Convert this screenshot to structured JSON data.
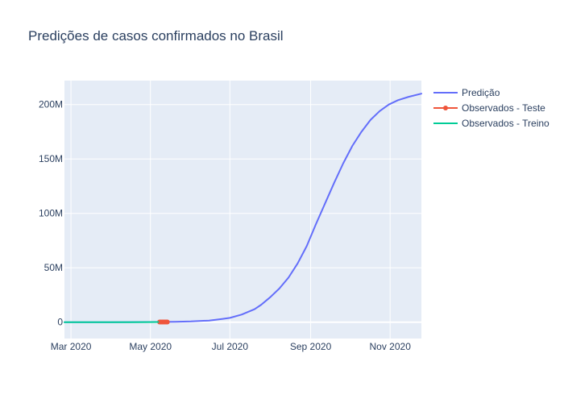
{
  "chart_data": {
    "type": "line",
    "title": "Predições de casos confirmados no Brasil",
    "xlabel": "",
    "ylabel": "",
    "x_axis": {
      "type": "date",
      "range": [
        "2020-02-25",
        "2020-11-25"
      ],
      "ticks": [
        {
          "date": "2020-03-01",
          "label": "Mar 2020"
        },
        {
          "date": "2020-05-01",
          "label": "May 2020"
        },
        {
          "date": "2020-07-01",
          "label": "Jul 2020"
        },
        {
          "date": "2020-09-01",
          "label": "Sep 2020"
        },
        {
          "date": "2020-11-01",
          "label": "Nov 2020"
        }
      ]
    },
    "y_axis": {
      "range": [
        -15000000,
        222000000
      ],
      "ticks": [
        {
          "value": 0,
          "label": "0"
        },
        {
          "value": 50000000,
          "label": "50M"
        },
        {
          "value": 100000000,
          "label": "100M"
        },
        {
          "value": 150000000,
          "label": "150M"
        },
        {
          "value": 200000000,
          "label": "200M"
        }
      ]
    },
    "grid": true,
    "legend_position": "right",
    "series": [
      {
        "name": "Predição",
        "color": "#636efa",
        "mode": "lines",
        "points": [
          [
            "2020-02-25",
            0
          ],
          [
            "2020-04-01",
            20000
          ],
          [
            "2020-05-01",
            150000
          ],
          [
            "2020-05-20",
            400000
          ],
          [
            "2020-06-01",
            700000
          ],
          [
            "2020-06-15",
            1500000
          ],
          [
            "2020-06-25",
            3000000
          ],
          [
            "2020-07-01",
            4000000
          ],
          [
            "2020-07-10",
            7000000
          ],
          [
            "2020-07-20",
            12000000
          ],
          [
            "2020-07-25",
            16000000
          ],
          [
            "2020-08-01",
            23000000
          ],
          [
            "2020-08-08",
            31000000
          ],
          [
            "2020-08-15",
            41000000
          ],
          [
            "2020-08-22",
            54000000
          ],
          [
            "2020-08-29",
            70000000
          ],
          [
            "2020-09-05",
            90000000
          ],
          [
            "2020-09-12",
            109000000
          ],
          [
            "2020-09-19",
            128000000
          ],
          [
            "2020-09-26",
            146000000
          ],
          [
            "2020-10-03",
            162000000
          ],
          [
            "2020-10-10",
            175000000
          ],
          [
            "2020-10-17",
            186000000
          ],
          [
            "2020-10-24",
            194000000
          ],
          [
            "2020-10-31",
            200000000
          ],
          [
            "2020-11-07",
            204000000
          ],
          [
            "2020-11-15",
            207000000
          ],
          [
            "2020-11-25",
            210000000
          ]
        ]
      },
      {
        "name": "Observados - Teste",
        "color": "#ef553b",
        "mode": "lines+markers",
        "points": [
          [
            "2020-05-08",
            150000
          ],
          [
            "2020-05-09",
            155000
          ],
          [
            "2020-05-10",
            160000
          ],
          [
            "2020-05-11",
            168000
          ],
          [
            "2020-05-12",
            178000
          ],
          [
            "2020-05-13",
            189000
          ],
          [
            "2020-05-14",
            200000
          ]
        ]
      },
      {
        "name": "Observados - Treino",
        "color": "#00cc96",
        "mode": "lines",
        "points": [
          [
            "2020-02-25",
            0
          ],
          [
            "2020-03-15",
            200
          ],
          [
            "2020-04-01",
            6000
          ],
          [
            "2020-04-15",
            28000
          ],
          [
            "2020-05-01",
            90000
          ],
          [
            "2020-05-07",
            135000
          ]
        ]
      }
    ]
  }
}
